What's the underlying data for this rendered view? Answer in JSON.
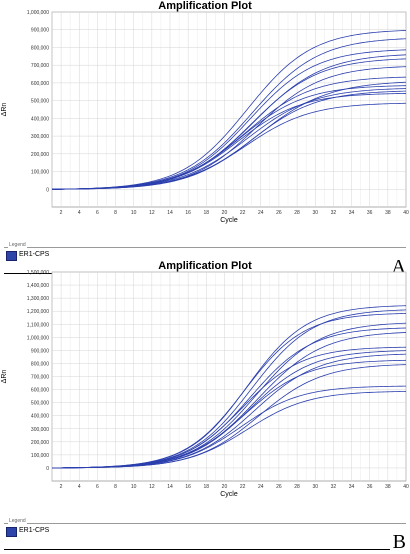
{
  "panels": [
    {
      "letter": "A",
      "legend_caption": "Legend",
      "legend_item": "ER1-CPS"
    },
    {
      "letter": "B",
      "legend_caption": "Legend",
      "legend_item": "ER1-CPS"
    }
  ],
  "colors": {
    "series": "#2b3fae",
    "grid": "#d4d4d4",
    "axis": "#777777",
    "legend_swatch": "#2d44a8"
  },
  "chart_data": [
    {
      "type": "line",
      "title": "Amplification Plot",
      "xlabel": "Cycle",
      "ylabel": "ΔRn",
      "xlim": [
        1,
        40
      ],
      "ylim": [
        -100000,
        1000000
      ],
      "xticks": [
        2,
        4,
        6,
        8,
        10,
        12,
        14,
        16,
        18,
        20,
        22,
        24,
        26,
        28,
        30,
        32,
        34,
        36,
        38,
        40
      ],
      "yticks": [
        0,
        100000,
        200000,
        300000,
        400000,
        500000,
        600000,
        700000,
        800000,
        900000,
        1000000
      ],
      "ytick_labels": [
        "0",
        "100,000",
        "200,000",
        "300,000",
        "400,000",
        "500,000",
        "600,000",
        "700,000",
        "800,000",
        "900,000",
        "1,000,000"
      ],
      "grid": true,
      "legend": [
        "ER1-CPS"
      ],
      "curve_model": "sigmoid",
      "series": [
        {
          "plateau": 905000,
          "midpoint_cycle": 22.5,
          "slope": 3.6
        },
        {
          "plateau": 860000,
          "midpoint_cycle": 23.0,
          "slope": 3.7
        },
        {
          "plateau": 795000,
          "midpoint_cycle": 22.8,
          "slope": 3.6
        },
        {
          "plateau": 770000,
          "midpoint_cycle": 23.3,
          "slope": 3.8
        },
        {
          "plateau": 745000,
          "midpoint_cycle": 23.0,
          "slope": 3.7
        },
        {
          "plateau": 700000,
          "midpoint_cycle": 23.5,
          "slope": 3.6
        },
        {
          "plateau": 640000,
          "midpoint_cycle": 22.3,
          "slope": 3.7
        },
        {
          "plateau": 615000,
          "midpoint_cycle": 23.7,
          "slope": 3.9
        },
        {
          "plateau": 590000,
          "midpoint_cycle": 21.8,
          "slope": 3.6
        },
        {
          "plateau": 575000,
          "midpoint_cycle": 22.5,
          "slope": 3.7
        },
        {
          "plateau": 560000,
          "midpoint_cycle": 23.0,
          "slope": 3.6
        },
        {
          "plateau": 545000,
          "midpoint_cycle": 21.5,
          "slope": 3.5
        },
        {
          "plateau": 490000,
          "midpoint_cycle": 22.3,
          "slope": 3.6
        }
      ]
    },
    {
      "type": "line",
      "title": "Amplification Plot",
      "xlabel": "Cycle",
      "ylabel": "ΔRn",
      "xlim": [
        1,
        40
      ],
      "ylim": [
        -100000,
        1500000
      ],
      "xticks": [
        2,
        4,
        6,
        8,
        10,
        12,
        14,
        16,
        18,
        20,
        22,
        24,
        26,
        28,
        30,
        32,
        34,
        36,
        38,
        40
      ],
      "yticks": [
        0,
        100000,
        200000,
        300000,
        400000,
        500000,
        600000,
        700000,
        800000,
        900000,
        1000000,
        1100000,
        1200000,
        1300000,
        1400000,
        1500000
      ],
      "ytick_labels": [
        "0",
        "100,000",
        "200,000",
        "300,000",
        "400,000",
        "500,000",
        "600,000",
        "700,000",
        "800,000",
        "900,000",
        "1,000,000",
        "1,100,000",
        "1,200,000",
        "1,300,000",
        "1,400,000",
        "1,500,000"
      ],
      "grid": true,
      "legend": [
        "ER1-CPS"
      ],
      "curve_model": "sigmoid",
      "series": [
        {
          "plateau": 1250000,
          "midpoint_cycle": 22.5,
          "slope": 3.3
        },
        {
          "plateau": 1220000,
          "midpoint_cycle": 23.0,
          "slope": 3.4
        },
        {
          "plateau": 1190000,
          "midpoint_cycle": 22.2,
          "slope": 3.3
        },
        {
          "plateau": 1120000,
          "midpoint_cycle": 23.5,
          "slope": 3.5
        },
        {
          "plateau": 1080000,
          "midpoint_cycle": 22.8,
          "slope": 3.4
        },
        {
          "plateau": 1050000,
          "midpoint_cycle": 23.6,
          "slope": 3.6
        },
        {
          "plateau": 930000,
          "midpoint_cycle": 22.0,
          "slope": 3.3
        },
        {
          "plateau": 905000,
          "midpoint_cycle": 22.8,
          "slope": 3.4
        },
        {
          "plateau": 880000,
          "midpoint_cycle": 23.3,
          "slope": 3.5
        },
        {
          "plateau": 830000,
          "midpoint_cycle": 22.3,
          "slope": 3.4
        },
        {
          "plateau": 800000,
          "midpoint_cycle": 23.8,
          "slope": 3.5
        },
        {
          "plateau": 630000,
          "midpoint_cycle": 21.8,
          "slope": 3.3
        },
        {
          "plateau": 590000,
          "midpoint_cycle": 22.5,
          "slope": 3.4
        }
      ]
    }
  ]
}
